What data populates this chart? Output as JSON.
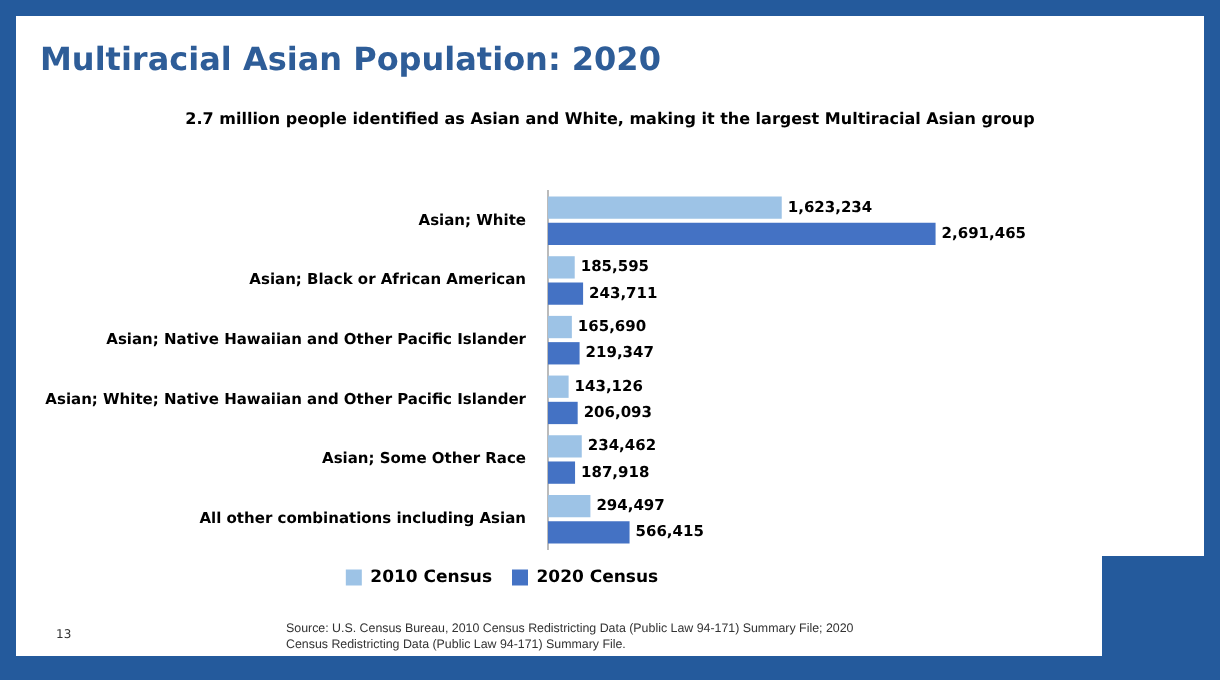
{
  "chart_data": {
    "type": "bar",
    "orientation": "horizontal",
    "title": "Multiracial Asian Population: 2020",
    "subtitle": "2.7 million people identified as Asian and White, making it the largest Multiracial Asian group",
    "categories": [
      "Asian; White",
      "Asian; Black or African American",
      "Asian; Native Hawaiian and Other Pacific Islander",
      "Asian; White; Native Hawaiian and Other Pacific Islander",
      "Asian; Some Other Race",
      "All other combinations including Asian"
    ],
    "series": [
      {
        "name": "2010 Census",
        "color": "#9dc3e6",
        "values": [
          1623234,
          185595,
          165690,
          143126,
          234462,
          294497
        ],
        "value_labels": [
          "1,623,234",
          "185,595",
          "165,690",
          "143,126",
          "234,462",
          "294,497"
        ]
      },
      {
        "name": "2020 Census",
        "color": "#4472c4",
        "values": [
          2691465,
          243711,
          219347,
          206093,
          187918,
          566415
        ],
        "value_labels": [
          "2,691,465",
          "243,711",
          "219,347",
          "206,093",
          "187,918",
          "566,415"
        ]
      }
    ],
    "tick_labels": "y",
    "legend": "bottom",
    "annotations": [
      "13",
      "Source: U.S. Census Bureau, 2010 Census Redistricting Data (Public Law 94-171) Summary File; 2020 Census Redistricting Data (Public Law 94-171) Summary File."
    ]
  }
}
